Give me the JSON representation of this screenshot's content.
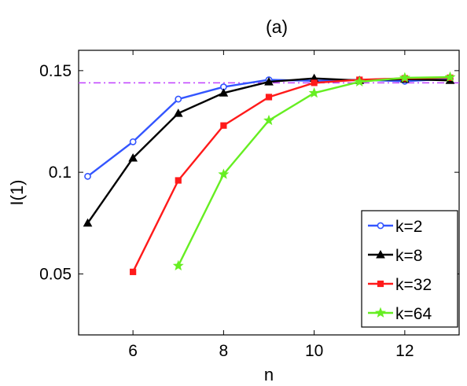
{
  "chart_data": {
    "type": "line",
    "title": "(a)",
    "xlabel": "n",
    "ylabel": "I(1)",
    "xlim": [
      4.8,
      13.2
    ],
    "ylim": [
      0.02,
      0.16
    ],
    "xticks": [
      6,
      8,
      10,
      12
    ],
    "xtick_labels": [
      "6",
      "8",
      "10",
      "12"
    ],
    "yticks": [
      0.05,
      0.1,
      0.15
    ],
    "ytick_labels": [
      "0.05",
      "0.1",
      "0.15"
    ],
    "grid": false,
    "legend_position": "bottom-right",
    "reference_line": {
      "y": 0.144,
      "color": "#c040ff",
      "style": "dash-dot"
    },
    "series": [
      {
        "name": "k=2",
        "color": "#3355ff",
        "marker": "circle",
        "x": [
          5,
          6,
          7,
          8,
          9,
          10,
          11,
          12,
          13
        ],
        "y": [
          0.098,
          0.115,
          0.136,
          0.142,
          0.1455,
          0.145,
          0.1455,
          0.1448,
          0.146
        ]
      },
      {
        "name": "k=8",
        "color": "#000000",
        "marker": "triangle",
        "x": [
          5,
          6,
          7,
          8,
          9,
          10,
          11,
          12,
          13
        ],
        "y": [
          0.075,
          0.107,
          0.129,
          0.139,
          0.1445,
          0.1462,
          0.1452,
          0.1458,
          0.1452
        ]
      },
      {
        "name": "k=32",
        "color": "#ff1a1a",
        "marker": "square",
        "x": [
          6,
          7,
          8,
          9,
          10,
          11,
          12,
          13
        ],
        "y": [
          0.051,
          0.096,
          0.123,
          0.137,
          0.144,
          0.1455,
          0.1462,
          0.1465
        ]
      },
      {
        "name": "k=64",
        "color": "#66ee22",
        "marker": "star",
        "x": [
          7,
          8,
          9,
          10,
          11,
          12,
          13
        ],
        "y": [
          0.054,
          0.099,
          0.1255,
          0.139,
          0.1445,
          0.1465,
          0.1468
        ]
      }
    ]
  }
}
